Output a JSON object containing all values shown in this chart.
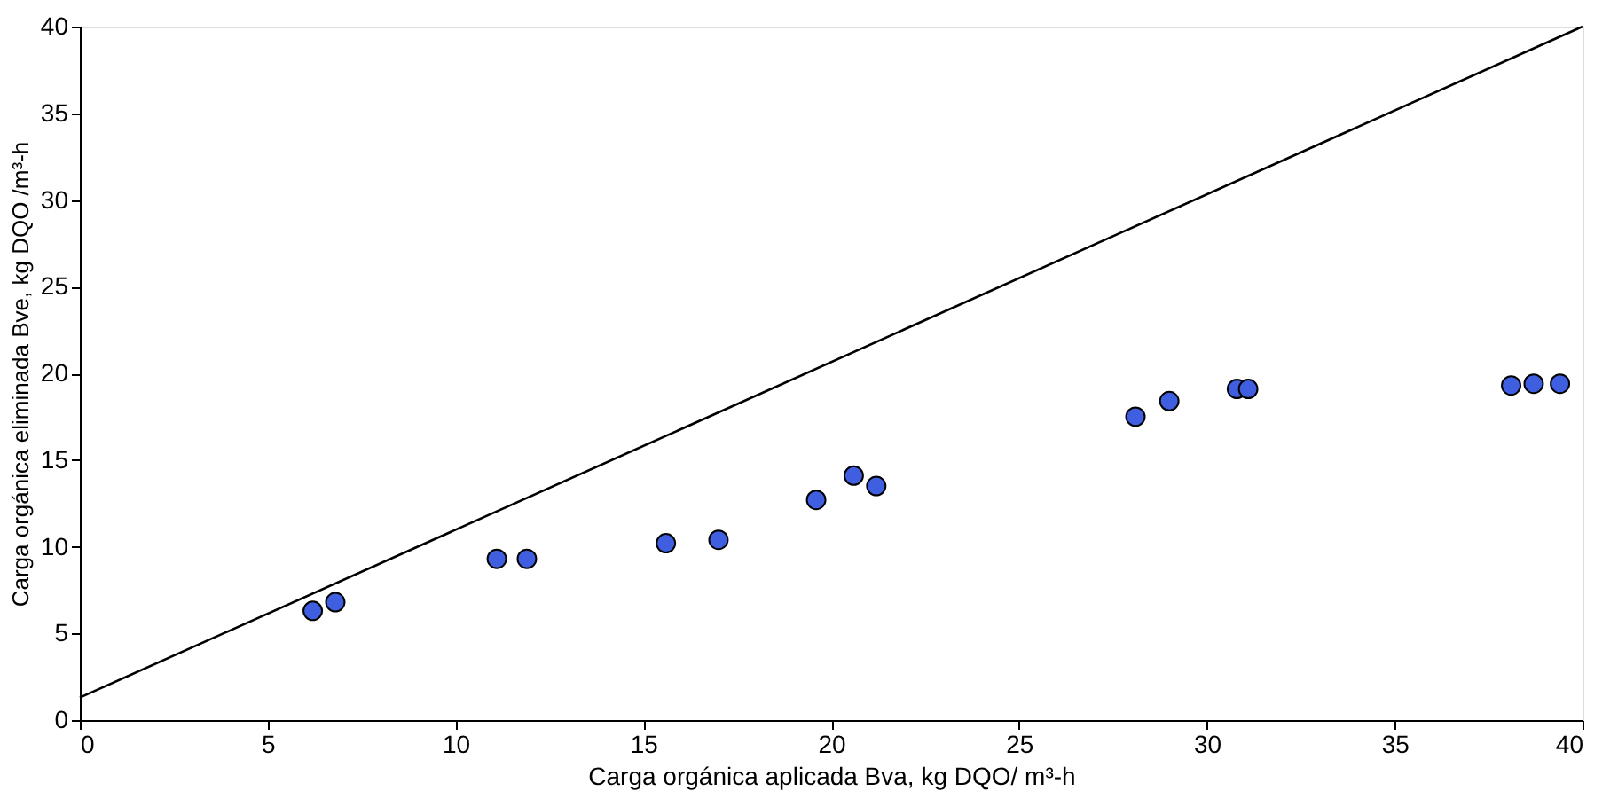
{
  "chart_data": {
    "type": "scatter",
    "xlabel": "Carga orgánica aplicada Bva, kg DQO/ m³-h",
    "ylabel": "Carga orgánica eliminada Bve, kg DQO /m³-h",
    "xlim": [
      0,
      40
    ],
    "xticks": [
      0,
      5,
      10,
      15,
      20,
      25,
      30,
      35,
      40
    ],
    "ylim": [
      0,
      40
    ],
    "yticks": [
      0,
      5,
      10,
      15,
      20,
      25,
      30,
      35,
      40
    ],
    "grid": false,
    "series": [
      {
        "marker": "circle",
        "color": "#3f5fe0",
        "x": [
          6.2,
          6.8,
          11.1,
          11.9,
          15.6,
          17.0,
          19.6,
          20.6,
          21.2,
          28.1,
          29.0,
          30.8,
          31.1,
          38.1,
          38.7,
          39.4
        ],
        "values": [
          6.3,
          6.8,
          9.3,
          9.3,
          10.2,
          10.4,
          12.7,
          14.1,
          13.5,
          17.5,
          18.4,
          19.1,
          19.1,
          19.3,
          19.4,
          19.4
        ]
      },
      {
        "type": "line",
        "color": "#000000",
        "x": [
          0,
          40
        ],
        "values": [
          1.3,
          40
        ]
      }
    ]
  }
}
